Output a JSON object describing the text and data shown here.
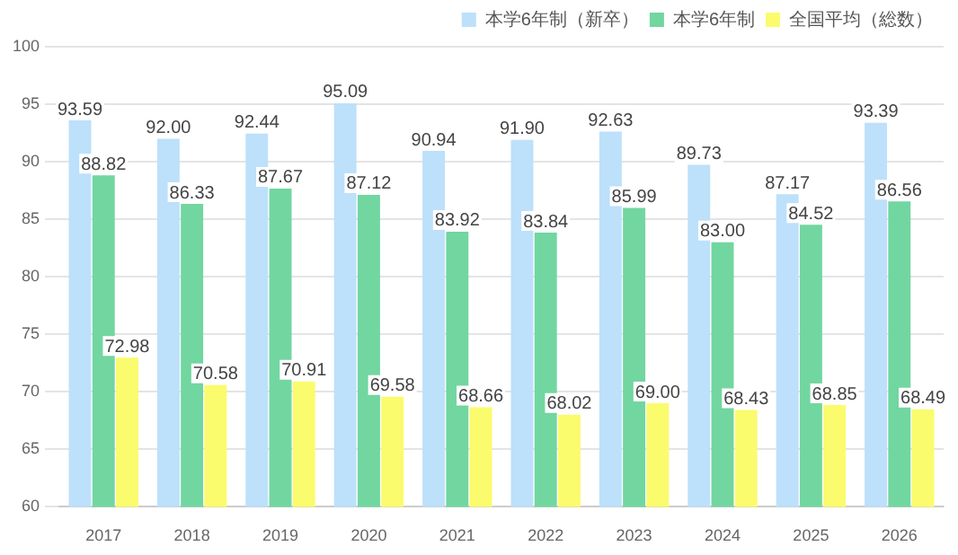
{
  "chart_data": {
    "type": "bar",
    "categories": [
      "2017",
      "2018",
      "2019",
      "2020",
      "2021",
      "2022",
      "2023",
      "2024",
      "2025",
      "2026"
    ],
    "series": [
      {
        "name": "本学6年制（新卒）",
        "color": "#bde0fb",
        "values": [
          93.59,
          92.0,
          92.44,
          95.09,
          90.94,
          91.9,
          92.63,
          89.73,
          87.17,
          93.39
        ],
        "value_labels": [
          "93.59",
          "92.00",
          "92.44",
          "95.09",
          "90.94",
          "91.90",
          "92.63",
          "89.73",
          "87.17",
          "93.39"
        ]
      },
      {
        "name": "本学6年制",
        "color": "#72d6a0",
        "values": [
          88.82,
          86.33,
          87.67,
          87.12,
          83.92,
          83.84,
          85.99,
          83.0,
          84.52,
          86.56
        ],
        "value_labels": [
          "88.82",
          "86.33",
          "87.67",
          "87.12",
          "83.92",
          "83.84",
          "85.99",
          "83.00",
          "84.52",
          "86.56"
        ]
      },
      {
        "name": "全国平均（総数）",
        "color": "#fbfb6e",
        "values": [
          72.98,
          70.58,
          70.91,
          69.58,
          68.66,
          68.02,
          69.0,
          68.43,
          68.85,
          68.49
        ],
        "value_labels": [
          "72.98",
          "70.58",
          "70.91",
          "69.58",
          "68.66",
          "68.02",
          "69.00",
          "68.43",
          "68.85",
          "68.49"
        ]
      }
    ],
    "ylim": [
      60,
      100
    ],
    "yticks": [
      60,
      65,
      70,
      75,
      80,
      85,
      90,
      95,
      100
    ],
    "grid": "y",
    "legend": "top right"
  }
}
